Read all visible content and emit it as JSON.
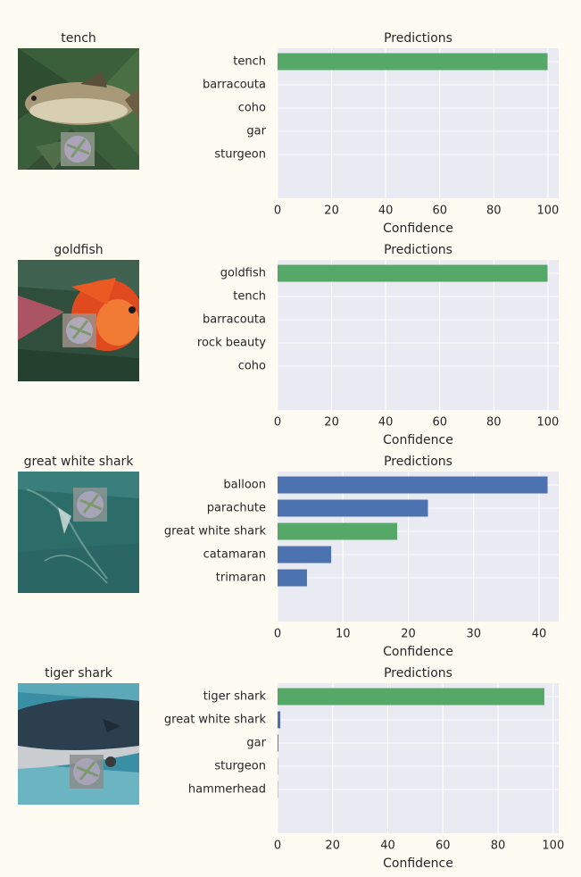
{
  "colors": {
    "axes_bg": "#eaeaf2",
    "grid": "#ffffff",
    "highlight_bar": "#55a868",
    "other_bar": "#4c72b0"
  },
  "panels": [
    {
      "image_title": "tench",
      "image_desc": "photo of a tench fish on leaves with a small adversarial patch",
      "chart_title": "Predictions"
    },
    {
      "image_title": "goldfish",
      "image_desc": "photo of a goldfish with a small adversarial patch",
      "chart_title": "Predictions"
    },
    {
      "image_title": "great white shark",
      "image_desc": "photo of water with a shark and an adversarial patch",
      "chart_title": "Predictions"
    },
    {
      "image_title": "tiger shark",
      "image_desc": "photo of a tiger shark with an adversarial patch",
      "chart_title": "Predictions"
    }
  ],
  "chart_data": [
    {
      "type": "bar",
      "orientation": "horizontal",
      "title": "Predictions",
      "xlabel": "Confidence",
      "ylabel": "",
      "categories": [
        "tench",
        "barracouta",
        "coho",
        "gar",
        "sturgeon"
      ],
      "values": [
        99.9,
        0,
        0,
        0,
        0
      ],
      "highlight": "tench",
      "xlim": [
        0,
        104
      ],
      "xticks": [
        0,
        20,
        40,
        60,
        80,
        100
      ],
      "grid": true
    },
    {
      "type": "bar",
      "orientation": "horizontal",
      "title": "Predictions",
      "xlabel": "Confidence",
      "ylabel": "",
      "categories": [
        "goldfish",
        "tench",
        "barracouta",
        "rock beauty",
        "coho"
      ],
      "values": [
        99.9,
        0,
        0,
        0,
        0
      ],
      "highlight": "goldfish",
      "xlim": [
        0,
        104
      ],
      "xticks": [
        0,
        20,
        40,
        60,
        80,
        100
      ],
      "grid": true
    },
    {
      "type": "bar",
      "orientation": "horizontal",
      "title": "Predictions",
      "xlabel": "Confidence",
      "ylabel": "",
      "categories": [
        "balloon",
        "parachute",
        "great white shark",
        "catamaran",
        "trimaran"
      ],
      "values": [
        41.3,
        23.0,
        18.3,
        8.2,
        4.5
      ],
      "highlight": "great white shark",
      "xlim": [
        0,
        43
      ],
      "xticks": [
        0,
        10,
        20,
        30,
        40
      ],
      "grid": true
    },
    {
      "type": "bar",
      "orientation": "horizontal",
      "title": "Predictions",
      "xlabel": "Confidence",
      "ylabel": "",
      "categories": [
        "tiger shark",
        "great white shark",
        "gar",
        "sturgeon",
        "hammerhead"
      ],
      "values": [
        96.8,
        1.0,
        0.3,
        0.1,
        0.1
      ],
      "highlight": "tiger shark",
      "xlim": [
        0,
        102
      ],
      "xticks": [
        0,
        20,
        40,
        60,
        80,
        100
      ],
      "grid": true
    }
  ]
}
